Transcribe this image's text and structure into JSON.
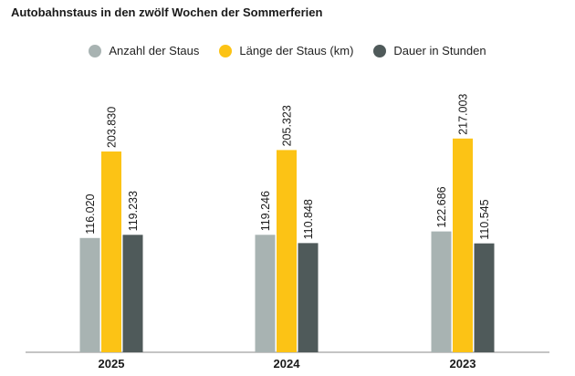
{
  "chart_data": {
    "type": "bar",
    "title": "Autobahnstaus in den zwölf Wochen der Sommerferien",
    "categories": [
      "2025",
      "2024",
      "2023"
    ],
    "series": [
      {
        "name": "Anzahl der Staus",
        "color": "#a8b3b2",
        "values": [
          116020,
          119246,
          122686
        ],
        "labels": [
          "116.020",
          "119.246",
          "122.686"
        ]
      },
      {
        "name": "Länge der Staus (km)",
        "color": "#fcc315",
        "values": [
          203830,
          205323,
          217003
        ],
        "labels": [
          "203.830",
          "205.323",
          "217.003"
        ]
      },
      {
        "name": "Dauer in Stunden",
        "color": "#4f5a5a",
        "values": [
          119233,
          110848,
          110545
        ],
        "labels": [
          "119.233",
          "110.848",
          "110.545"
        ]
      }
    ],
    "ylim": [
      0,
      265000
    ],
    "grid": false,
    "legend_position": "top-center"
  }
}
